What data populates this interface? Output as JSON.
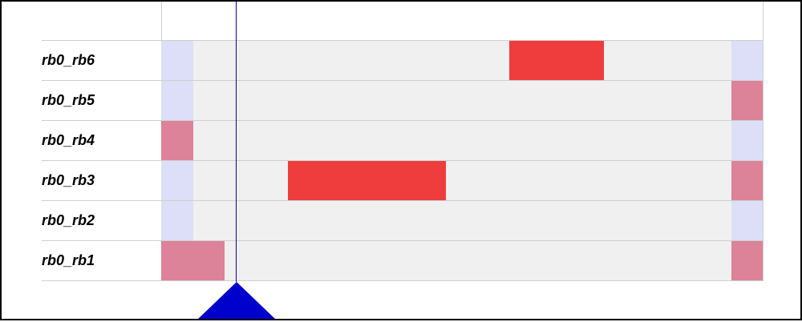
{
  "rows": [
    {
      "label": "rb0_rb6"
    },
    {
      "label": "rb0_rb5"
    },
    {
      "label": "rb0_rb4"
    },
    {
      "label": "rb0_rb3"
    },
    {
      "label": "rb0_rb2"
    },
    {
      "label": "rb0_rb1"
    }
  ],
  "colors": {
    "track": "#f0f0f0",
    "light": "#dcdff7",
    "pink": "#dc8299",
    "red": "#ef3d3d",
    "cursor": "#0000cc",
    "gridline": "#cfcfcf"
  }
}
